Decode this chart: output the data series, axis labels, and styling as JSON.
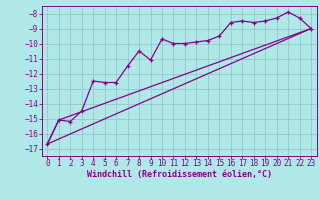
{
  "background_color": "#b0e8e8",
  "grid_color": "#90c8cc",
  "line_color": "#880088",
  "marker_color": "#880088",
  "xlabel": "Windchill (Refroidissement éolien,°C)",
  "xlabel_fontsize": 6,
  "tick_fontsize": 5.5,
  "xlim": [
    -0.5,
    23.5
  ],
  "ylim": [
    -17.5,
    -7.5
  ],
  "xticks": [
    0,
    1,
    2,
    3,
    4,
    5,
    6,
    7,
    8,
    9,
    10,
    11,
    12,
    13,
    14,
    15,
    16,
    17,
    18,
    19,
    20,
    21,
    22,
    23
  ],
  "yticks": [
    -17,
    -16,
    -15,
    -14,
    -13,
    -12,
    -11,
    -10,
    -9,
    -8
  ],
  "series1_x": [
    0,
    1,
    2,
    3,
    4,
    5,
    6,
    7,
    8,
    9,
    10,
    11,
    12,
    13,
    14,
    15,
    16,
    17,
    18,
    19,
    20,
    21,
    22,
    23
  ],
  "series1_y": [
    -16.7,
    -15.1,
    -15.2,
    -14.5,
    -12.5,
    -12.6,
    -12.6,
    -11.5,
    -10.5,
    -11.1,
    -9.7,
    -10.0,
    -10.0,
    -9.9,
    -9.8,
    -9.5,
    -8.6,
    -8.5,
    -8.6,
    -8.5,
    -8.3,
    -7.9,
    -8.3,
    -9.0
  ],
  "series2_x": [
    0,
    23
  ],
  "series2_y": [
    -16.7,
    -9.0
  ],
  "series3_x": [
    0,
    1,
    23
  ],
  "series3_y": [
    -16.7,
    -15.1,
    -9.0
  ],
  "figwidth": 3.2,
  "figheight": 2.0,
  "dpi": 100
}
